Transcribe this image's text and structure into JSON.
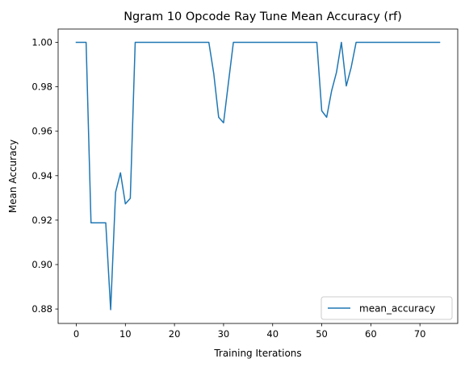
{
  "chart_data": {
    "type": "line",
    "title": "Ngram 10 Opcode Ray Tune Mean Accuracy (rf)",
    "xlabel": "Training Iterations",
    "ylabel": "Mean Accuracy",
    "xlim": [
      -3.7,
      77.7
    ],
    "ylim": [
      0.8735,
      1.006
    ],
    "xticks": [
      0,
      10,
      20,
      30,
      40,
      50,
      60,
      70
    ],
    "yticks": [
      0.88,
      0.9,
      0.92,
      0.94,
      0.96,
      0.98,
      1.0
    ],
    "xtick_labels": [
      "0",
      "10",
      "20",
      "30",
      "40",
      "50",
      "60",
      "70"
    ],
    "ytick_labels": [
      "0.88",
      "0.90",
      "0.92",
      "0.94",
      "0.96",
      "0.98",
      "1.00"
    ],
    "grid": false,
    "legend_position": "lower-right",
    "series": [
      {
        "name": "mean_accuracy",
        "color": "#1f77b4",
        "x": [
          0,
          1,
          2,
          3,
          4,
          5,
          6,
          7,
          8,
          9,
          10,
          11,
          12,
          13,
          14,
          15,
          16,
          17,
          18,
          19,
          20,
          21,
          22,
          23,
          24,
          25,
          26,
          27,
          28,
          29,
          30,
          31,
          32,
          33,
          34,
          35,
          36,
          37,
          38,
          39,
          40,
          41,
          42,
          43,
          44,
          45,
          46,
          47,
          48,
          49,
          50,
          51,
          52,
          53,
          54,
          55,
          56,
          57,
          58,
          59,
          60,
          61,
          62,
          63,
          64,
          65,
          66,
          67,
          68,
          69,
          70,
          71,
          72,
          73,
          74
        ],
        "y": [
          1.0,
          1.0,
          1.0,
          0.9188,
          0.9188,
          0.9188,
          0.9188,
          0.8797,
          0.9325,
          0.9413,
          0.9273,
          0.9298,
          1.0,
          1.0,
          1.0,
          1.0,
          1.0,
          1.0,
          1.0,
          1.0,
          1.0,
          1.0,
          1.0,
          1.0,
          1.0,
          1.0,
          1.0,
          1.0,
          0.986,
          0.9663,
          0.9638,
          0.982,
          1.0,
          1.0,
          1.0,
          1.0,
          1.0,
          1.0,
          1.0,
          1.0,
          1.0,
          1.0,
          1.0,
          1.0,
          1.0,
          1.0,
          1.0,
          1.0,
          1.0,
          1.0,
          0.9692,
          0.9663,
          0.9781,
          0.9865,
          1.0,
          0.9804,
          0.9888,
          1.0,
          1.0,
          1.0,
          1.0,
          1.0,
          1.0,
          1.0,
          1.0,
          1.0,
          1.0,
          1.0,
          1.0,
          1.0,
          1.0,
          1.0,
          1.0,
          1.0,
          1.0
        ]
      }
    ]
  }
}
